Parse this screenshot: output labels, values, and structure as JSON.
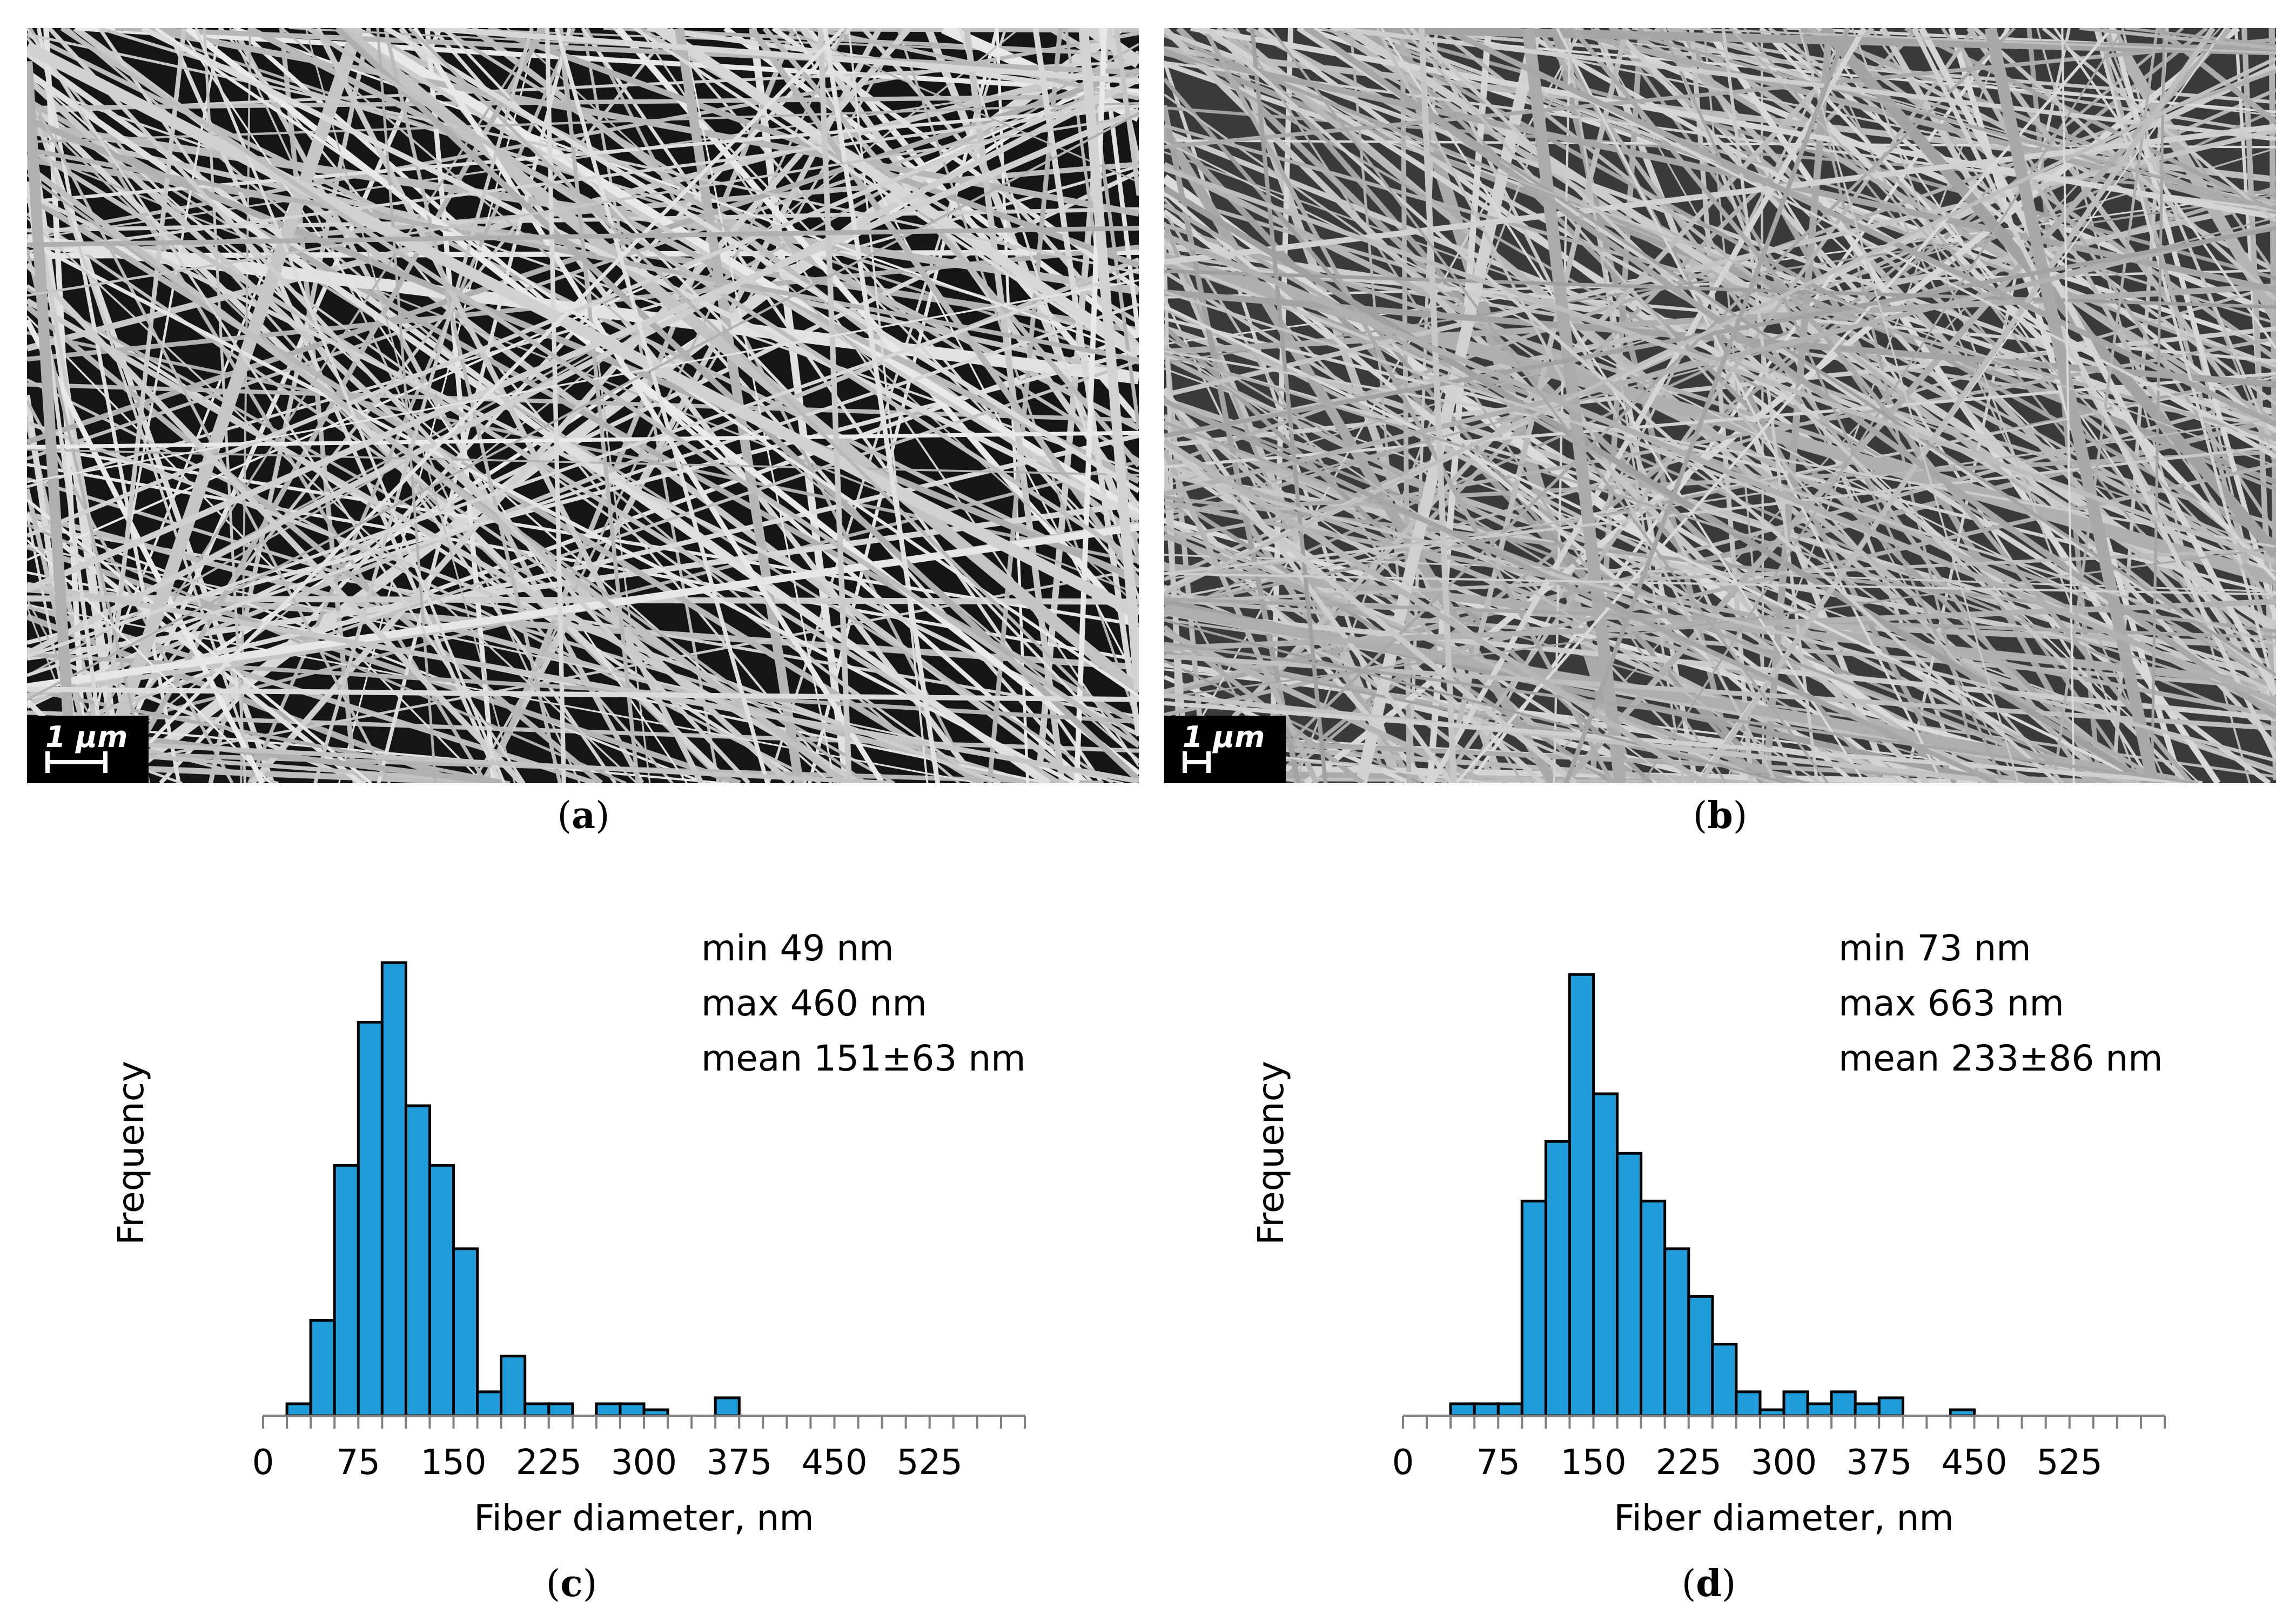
{
  "figure": {
    "panel_a_label": "a",
    "panel_b_label": "b",
    "panel_c_label": "c",
    "panel_d_label": "d",
    "scale_bar_a": "1 µm",
    "scale_bar_b": "1 µm"
  },
  "colors": {
    "bar_fill": "#1f9ddb",
    "bar_stroke": "#000000",
    "axis": "#808080"
  },
  "chart_data": [
    {
      "type": "bar",
      "panel": "c",
      "title": "",
      "xlabel": "Fiber diameter, nm",
      "ylabel": "Frequency",
      "bin_width": 18.75,
      "bin_start": 0,
      "bins_total": 24,
      "xlim": [
        0,
        600
      ],
      "xticks": [
        "0",
        "75",
        "150",
        "225",
        "300",
        "375",
        "450",
        "525"
      ],
      "values": [
        0,
        1,
        8,
        21,
        33,
        38,
        26,
        21,
        14,
        2,
        5,
        1,
        1,
        0,
        1,
        1,
        0.5,
        0,
        0,
        1.5,
        0,
        0,
        0,
        0
      ],
      "ylim": [
        0,
        40
      ],
      "stats": {
        "min": "min 49 nm",
        "max": "max 460 nm",
        "mean": "mean 151±63 nm"
      }
    },
    {
      "type": "bar",
      "panel": "d",
      "title": "",
      "xlabel": "Fiber diameter, nm",
      "ylabel": "Frequency",
      "bin_width": 18.75,
      "bin_start": 0,
      "bins_total": 24,
      "xlim": [
        0,
        600
      ],
      "xticks": [
        "0",
        "75",
        "150",
        "225",
        "300",
        "375",
        "450",
        "525"
      ],
      "values": [
        0,
        0,
        1,
        1,
        1,
        18,
        23,
        37,
        27,
        22,
        18,
        14,
        10,
        6,
        2,
        0.5,
        2,
        1,
        2,
        1,
        1.5,
        0,
        0,
        0.5
      ],
      "ylim": [
        0,
        40
      ],
      "stats": {
        "min": "min 73 nm",
        "max": "max 663 nm",
        "mean": "mean 233±86 nm"
      }
    }
  ]
}
